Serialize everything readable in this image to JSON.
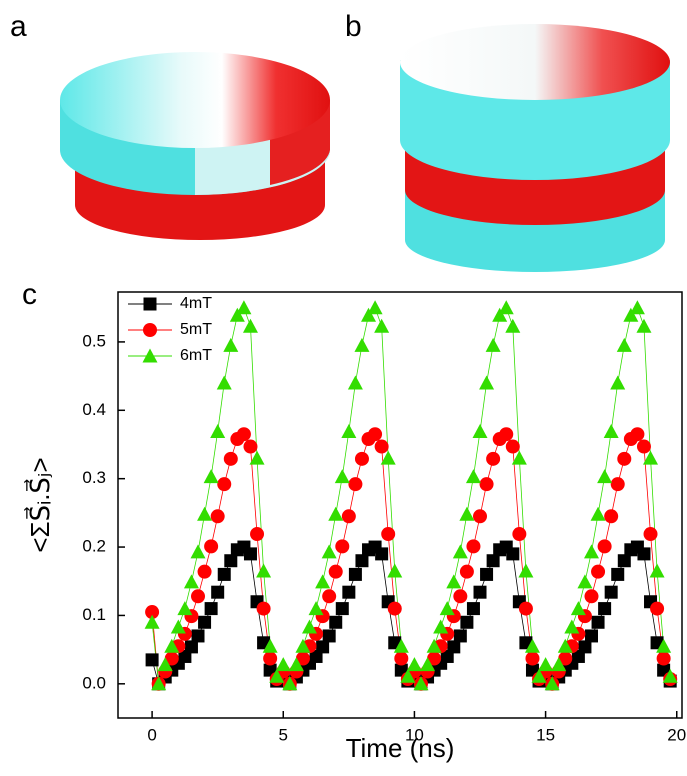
{
  "panel_labels": [
    "a",
    "b",
    "c"
  ],
  "chart_data": {
    "type": "scatter-line",
    "x_label": "Time (ns)",
    "y_label": "<ΣS⃗ᵢ.S⃗ⱼ>",
    "xlim": [
      -1.3,
      20.2
    ],
    "ylim": [
      -0.05,
      0.573
    ],
    "xticks": [
      0,
      5,
      10,
      15,
      20
    ],
    "yticks": [
      {
        "value": 0,
        "label": "0.0"
      },
      0.1,
      0.2,
      0.3,
      0.4,
      0.5
    ],
    "legend": "upper-left",
    "x": [
      0,
      0.25,
      0.5,
      0.75,
      1,
      1.25,
      1.5,
      1.75,
      2,
      2.25,
      2.5,
      2.75,
      3,
      3.25,
      3.5,
      3.75,
      4,
      4.25,
      4.5,
      4.75,
      5,
      5.25,
      5.5,
      5.75,
      6,
      6.25,
      6.5,
      6.75,
      7,
      7.25,
      7.5,
      7.75,
      8,
      8.25,
      8.5,
      8.75,
      9,
      9.25,
      9.5,
      9.75,
      10,
      10.25,
      10.5,
      10.75,
      11,
      11.25,
      11.5,
      11.75,
      12,
      12.25,
      12.5,
      12.75,
      13,
      13.25,
      13.5,
      13.75,
      14,
      14.25,
      14.5,
      14.75,
      15,
      15.25,
      15.5,
      15.75,
      16,
      16.25,
      16.5,
      16.75,
      17,
      17.25,
      17.5,
      17.75,
      18,
      18.25,
      18.5,
      18.75,
      19,
      19.25,
      19.5,
      19.75
    ],
    "series": [
      {
        "name": "4mT",
        "color": "#000000",
        "marker": "square",
        "values": [
          0.035,
          0,
          0.01,
          0.02,
          0.03,
          0.04,
          0.054,
          0.07,
          0.09,
          0.11,
          0.134,
          0.16,
          0.18,
          0.196,
          0.2,
          0.19,
          0.12,
          0.06,
          0.02,
          0.004,
          0.01,
          0,
          0.01,
          0.02,
          0.03,
          0.04,
          0.054,
          0.07,
          0.09,
          0.11,
          0.134,
          0.16,
          0.18,
          0.196,
          0.2,
          0.19,
          0.12,
          0.06,
          0.02,
          0.004,
          0.01,
          0,
          0.01,
          0.02,
          0.03,
          0.04,
          0.054,
          0.07,
          0.09,
          0.11,
          0.134,
          0.16,
          0.18,
          0.196,
          0.2,
          0.19,
          0.12,
          0.06,
          0.02,
          0.004,
          0.01,
          0,
          0.01,
          0.02,
          0.03,
          0.04,
          0.054,
          0.07,
          0.09,
          0.11,
          0.134,
          0.16,
          0.18,
          0.196,
          0.2,
          0.19,
          0.12,
          0.06,
          0.02,
          0.004
        ]
      },
      {
        "name": "5mT",
        "color": "#ff0000",
        "marker": "circle",
        "values": [
          0.105,
          0,
          0.018,
          0.037,
          0.055,
          0.073,
          0.099,
          0.128,
          0.164,
          0.201,
          0.245,
          0.292,
          0.329,
          0.358,
          0.365,
          0.347,
          0.219,
          0.11,
          0.037,
          0.007,
          0.018,
          0,
          0.018,
          0.037,
          0.055,
          0.073,
          0.099,
          0.128,
          0.164,
          0.201,
          0.245,
          0.292,
          0.329,
          0.358,
          0.365,
          0.347,
          0.219,
          0.11,
          0.037,
          0.007,
          0.018,
          0,
          0.018,
          0.037,
          0.055,
          0.073,
          0.099,
          0.128,
          0.164,
          0.201,
          0.245,
          0.292,
          0.329,
          0.358,
          0.365,
          0.347,
          0.219,
          0.11,
          0.037,
          0.007,
          0.018,
          0,
          0.018,
          0.037,
          0.055,
          0.073,
          0.099,
          0.128,
          0.164,
          0.201,
          0.245,
          0.292,
          0.329,
          0.358,
          0.365,
          0.347,
          0.219,
          0.11,
          0.037,
          0.007
        ]
      },
      {
        "name": "6mT",
        "color": "#33dd00",
        "marker": "triangle",
        "values": [
          0.09,
          0,
          0.028,
          0.055,
          0.083,
          0.11,
          0.149,
          0.193,
          0.248,
          0.303,
          0.369,
          0.44,
          0.495,
          0.539,
          0.55,
          0.523,
          0.33,
          0.165,
          0.055,
          0.011,
          0.028,
          0,
          0.028,
          0.055,
          0.083,
          0.11,
          0.149,
          0.193,
          0.248,
          0.303,
          0.369,
          0.44,
          0.495,
          0.539,
          0.55,
          0.523,
          0.33,
          0.165,
          0.055,
          0.011,
          0.028,
          0,
          0.028,
          0.055,
          0.083,
          0.11,
          0.149,
          0.193,
          0.248,
          0.303,
          0.369,
          0.44,
          0.495,
          0.539,
          0.55,
          0.523,
          0.33,
          0.165,
          0.055,
          0.011,
          0.028,
          0,
          0.028,
          0.055,
          0.083,
          0.11,
          0.149,
          0.193,
          0.248,
          0.303,
          0.369,
          0.44,
          0.495,
          0.539,
          0.55,
          0.523,
          0.33,
          0.165,
          0.055,
          0.011
        ]
      }
    ]
  }
}
